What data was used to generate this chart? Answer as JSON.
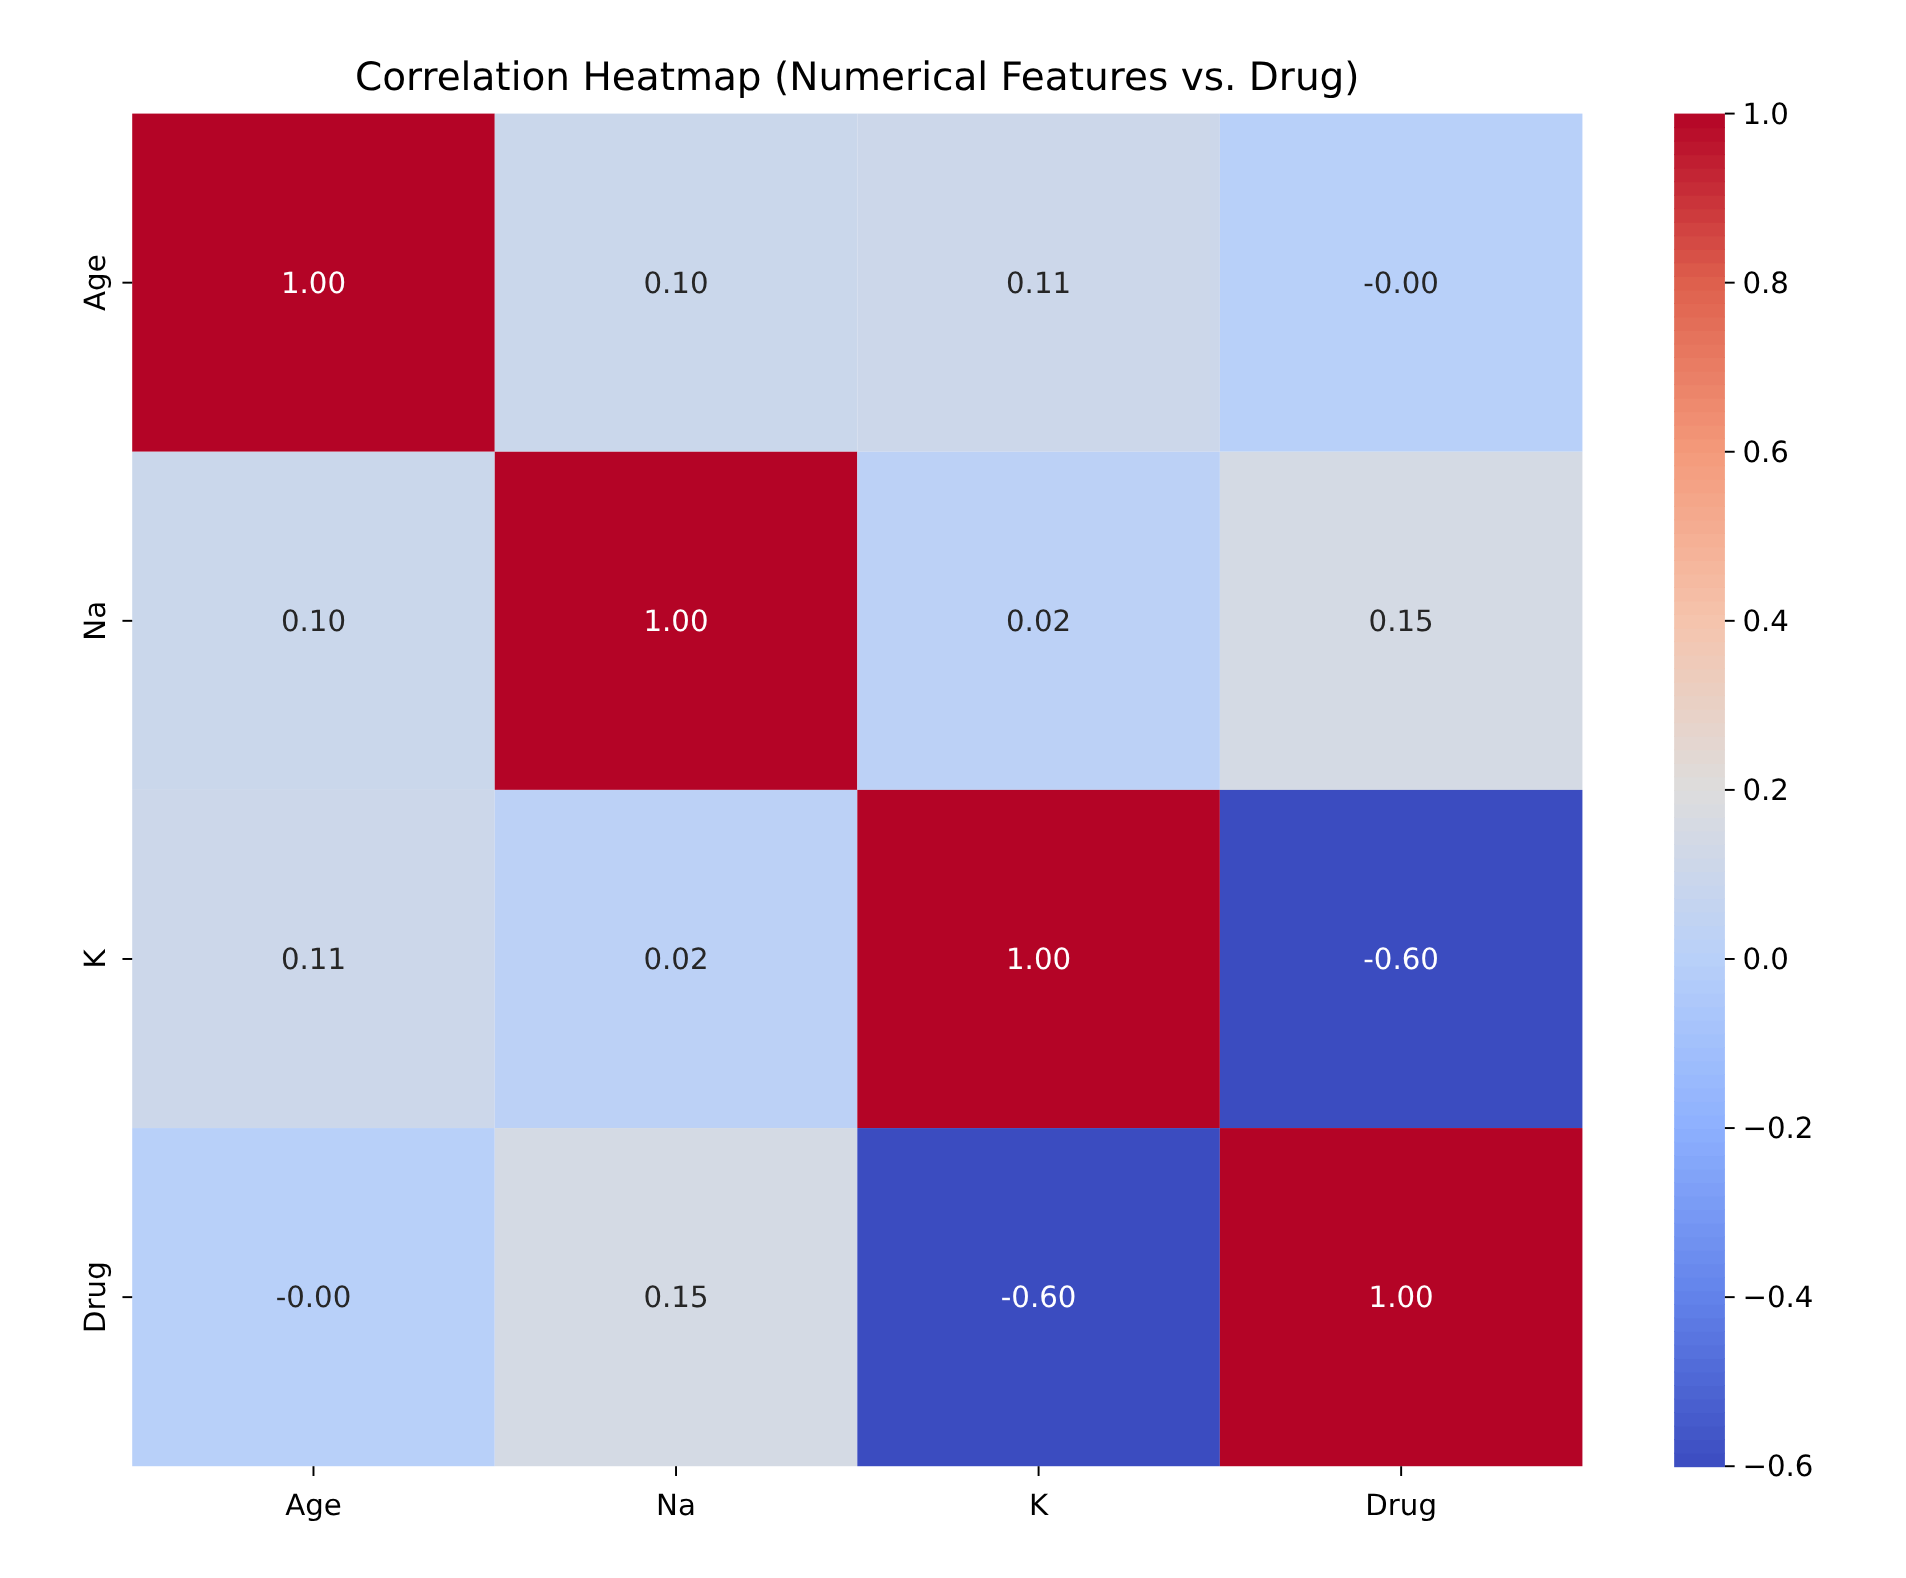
{
  "chart_data": {
    "type": "heatmap",
    "title": "Correlation Heatmap (Numerical Features vs. Drug)",
    "categories": [
      "Age",
      "Na",
      "K",
      "Drug"
    ],
    "y_categories": [
      "Age",
      "Na",
      "K",
      "Drug"
    ],
    "cells": [
      [
        1.0,
        0.1,
        0.11,
        -0.0
      ],
      [
        0.1,
        1.0,
        0.02,
        0.15
      ],
      [
        0.11,
        0.02,
        1.0,
        -0.6
      ],
      [
        -0.0,
        0.15,
        -0.6,
        1.0
      ]
    ],
    "cell_labels": [
      [
        "1.00",
        "0.10",
        "0.11",
        "-0.00"
      ],
      [
        "0.10",
        "1.00",
        "0.02",
        "0.15"
      ],
      [
        "0.11",
        "0.02",
        "1.00",
        "-0.60"
      ],
      [
        "-0.00",
        "0.15",
        "-0.60",
        "1.00"
      ]
    ],
    "clim": [
      -0.6,
      1.0
    ],
    "cticks": [
      {
        "value": -0.6,
        "label": "−0.6"
      },
      {
        "value": -0.4,
        "label": "−0.4"
      },
      {
        "value": -0.2,
        "label": "−0.2"
      },
      {
        "value": 0.0,
        "label": "0.0"
      },
      {
        "value": 0.2,
        "label": "0.2"
      },
      {
        "value": 0.4,
        "label": "0.4"
      },
      {
        "value": 0.6,
        "label": "0.6"
      },
      {
        "value": 0.8,
        "label": "0.8"
      },
      {
        "value": 1.0,
        "label": "1.0"
      }
    ]
  }
}
